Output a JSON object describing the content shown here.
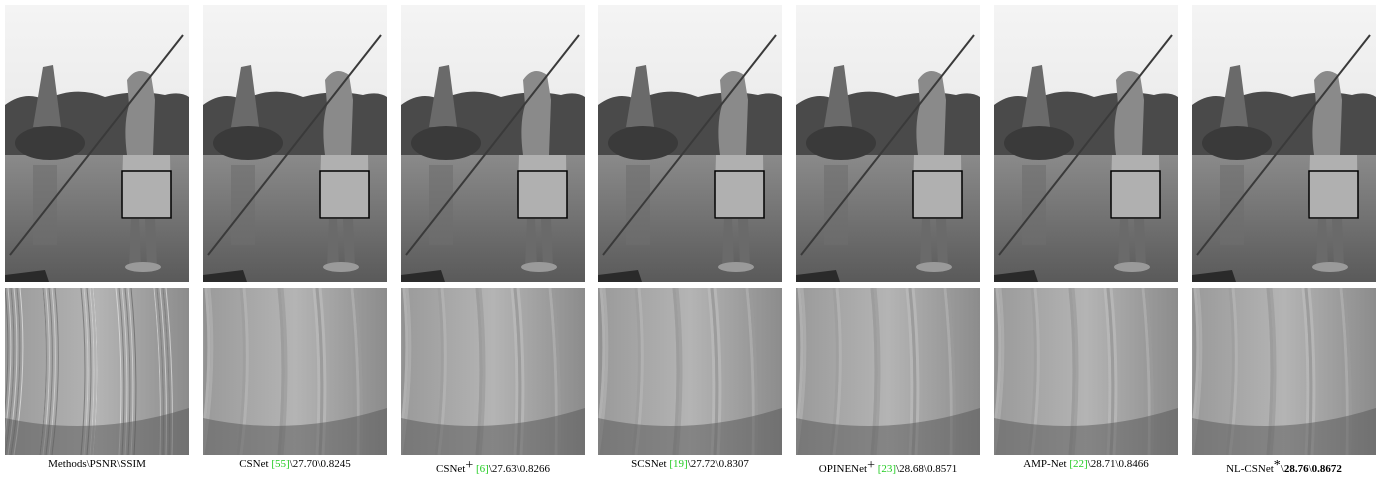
{
  "separator": "\\",
  "columns": [
    {
      "header": "Methods\\PSNR\\SSIM"
    },
    {
      "method": "CSNet",
      "ref": "[55]",
      "psnr": "27.70",
      "ssim": "0.8245"
    },
    {
      "method": "CSNet",
      "sup": "+",
      "ref": "[6]",
      "psnr": "27.63",
      "ssim": "0.8266"
    },
    {
      "method": "SCSNet",
      "ref": "[19]",
      "psnr": "27.72",
      "ssim": "0.8307"
    },
    {
      "method": "OPINENet",
      "sup": "+",
      "ref": "[23]",
      "psnr": "28.68",
      "ssim": "0.8571"
    },
    {
      "method": "AMP-Net",
      "ref": "[22]",
      "psnr": "28.71",
      "ssim": "0.8466"
    },
    {
      "method": "NL-CSNet",
      "sup": "*",
      "psnr": "28.76",
      "ssim": "0.8672",
      "bold": true
    }
  ]
}
